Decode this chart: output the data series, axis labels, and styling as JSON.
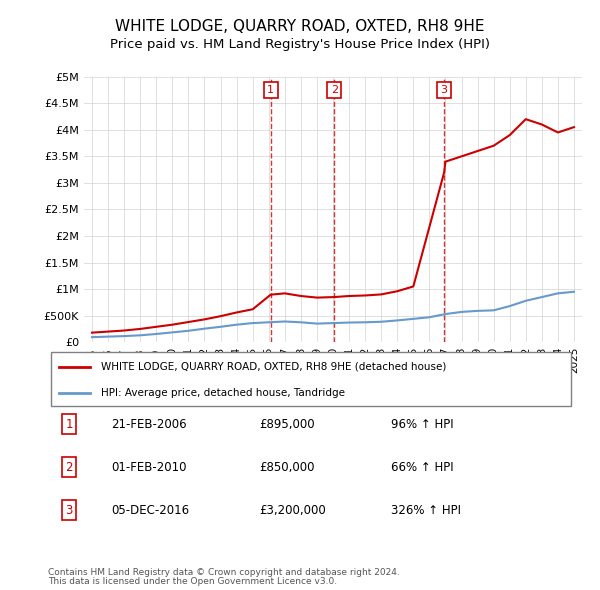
{
  "title": "WHITE LODGE, QUARRY ROAD, OXTED, RH8 9HE",
  "subtitle": "Price paid vs. HM Land Registry's House Price Index (HPI)",
  "footer1": "Contains HM Land Registry data © Crown copyright and database right 2024.",
  "footer2": "This data is licensed under the Open Government Licence v3.0.",
  "legend_property": "WHITE LODGE, QUARRY ROAD, OXTED, RH8 9HE (detached house)",
  "legend_hpi": "HPI: Average price, detached house, Tandridge",
  "property_color": "#cc0000",
  "hpi_color": "#6699cc",
  "vline_color": "#cc0000",
  "ylim": [
    0,
    5000000
  ],
  "yticks": [
    0,
    500000,
    1000000,
    1500000,
    2000000,
    2500000,
    3000000,
    3500000,
    4000000,
    4500000,
    5000000
  ],
  "ytick_labels": [
    "£0",
    "£500K",
    "£1M",
    "£1.5M",
    "£2M",
    "£2.5M",
    "£3M",
    "£3.5M",
    "£4M",
    "£4.5M",
    "£5M"
  ],
  "sales": [
    {
      "label": "1",
      "date": 2006.12,
      "price": 895000,
      "pct": "96%",
      "date_str": "21-FEB-2006"
    },
    {
      "label": "2",
      "date": 2010.08,
      "price": 850000,
      "pct": "66%",
      "date_str": "01-FEB-2010"
    },
    {
      "label": "3",
      "date": 2016.92,
      "price": 3200000,
      "pct": "326%",
      "date_str": "05-DEC-2016"
    }
  ],
  "table_rows": [
    {
      "num": "1",
      "date": "21-FEB-2006",
      "price": "£895,000",
      "pct": "96% ↑ HPI"
    },
    {
      "num": "2",
      "date": "01-FEB-2010",
      "price": "£850,000",
      "pct": "66% ↑ HPI"
    },
    {
      "num": "3",
      "date": "05-DEC-2016",
      "price": "£3,200,000",
      "pct": "326% ↑ HPI"
    }
  ],
  "hpi_years": [
    1995,
    1996,
    1997,
    1998,
    1999,
    2000,
    2001,
    2002,
    2003,
    2004,
    2005,
    2006,
    2007,
    2008,
    2009,
    2010,
    2011,
    2012,
    2013,
    2014,
    2015,
    2016,
    2017,
    2018,
    2019,
    2020,
    2021,
    2022,
    2023,
    2024,
    2025
  ],
  "hpi_values": [
    95000,
    105000,
    115000,
    130000,
    155000,
    185000,
    215000,
    255000,
    290000,
    330000,
    360000,
    375000,
    390000,
    375000,
    350000,
    360000,
    370000,
    375000,
    385000,
    410000,
    440000,
    470000,
    530000,
    570000,
    590000,
    600000,
    680000,
    780000,
    850000,
    920000,
    950000
  ],
  "property_years": [
    1995,
    1996,
    1997,
    1998,
    1999,
    2000,
    2001,
    2002,
    2003,
    2004,
    2005,
    2006.12,
    2007,
    2008,
    2009,
    2010.08,
    2011,
    2012,
    2013,
    2014,
    2015,
    2016.92,
    2017,
    2018,
    2019,
    2020,
    2021,
    2022,
    2023,
    2024,
    2025
  ],
  "property_values": [
    180000,
    200000,
    220000,
    250000,
    290000,
    330000,
    380000,
    430000,
    490000,
    560000,
    620000,
    895000,
    920000,
    870000,
    840000,
    850000,
    870000,
    880000,
    900000,
    960000,
    1050000,
    3200000,
    3400000,
    3500000,
    3600000,
    3700000,
    3900000,
    4200000,
    4100000,
    3950000,
    4050000
  ],
  "xlim": [
    1994.5,
    2025.5
  ],
  "xticks": [
    1995,
    1996,
    1997,
    1998,
    1999,
    2000,
    2001,
    2002,
    2003,
    2004,
    2005,
    2006,
    2007,
    2008,
    2009,
    2010,
    2011,
    2012,
    2013,
    2014,
    2015,
    2016,
    2017,
    2018,
    2019,
    2020,
    2021,
    2022,
    2023,
    2024,
    2025
  ]
}
